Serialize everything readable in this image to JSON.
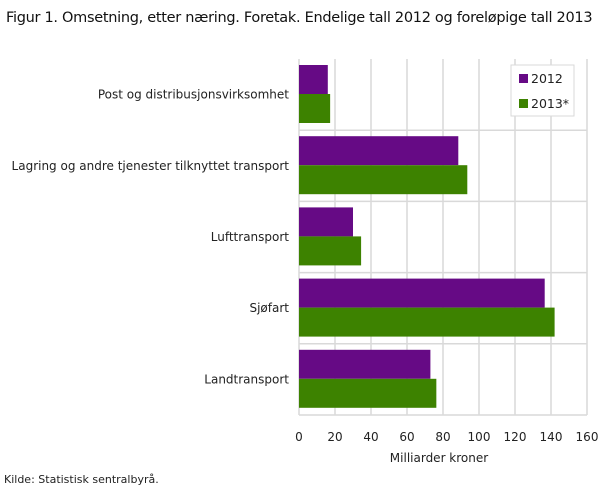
{
  "title": "Figur 1. Omsetning, etter næring. Foretak. Endelige tall 2012 og foreløpige tall 2013",
  "source": "Kilde: Statistisk sentralbyrå.",
  "chart_data": {
    "type": "bar",
    "orientation": "horizontal",
    "title": "Figur 1. Omsetning, etter næring. Foretak. Endelige tall 2012 og foreløpige tall 2013",
    "categories": [
      "Post og distribusjonsvirksomhet",
      "Lagring og andre tjenester tilknyttet transport",
      "Lufttransport",
      "Sjøfart",
      "Landtransport"
    ],
    "series": [
      {
        "name": "2012",
        "color": "#660a85",
        "values": [
          16,
          88.5,
          30,
          136.5,
          73
        ]
      },
      {
        "name": "2013*",
        "color": "#3d8200",
        "values": [
          17.3,
          93.5,
          34.5,
          142,
          76.3
        ]
      }
    ],
    "xlabel": "Milliarder  kroner",
    "ylabel": "",
    "xlim": [
      0,
      160
    ],
    "xticks": [
      "0",
      "20",
      "40",
      "60",
      "80",
      "100",
      "120",
      "140",
      "160"
    ],
    "grid": true,
    "legend": "top-right"
  }
}
